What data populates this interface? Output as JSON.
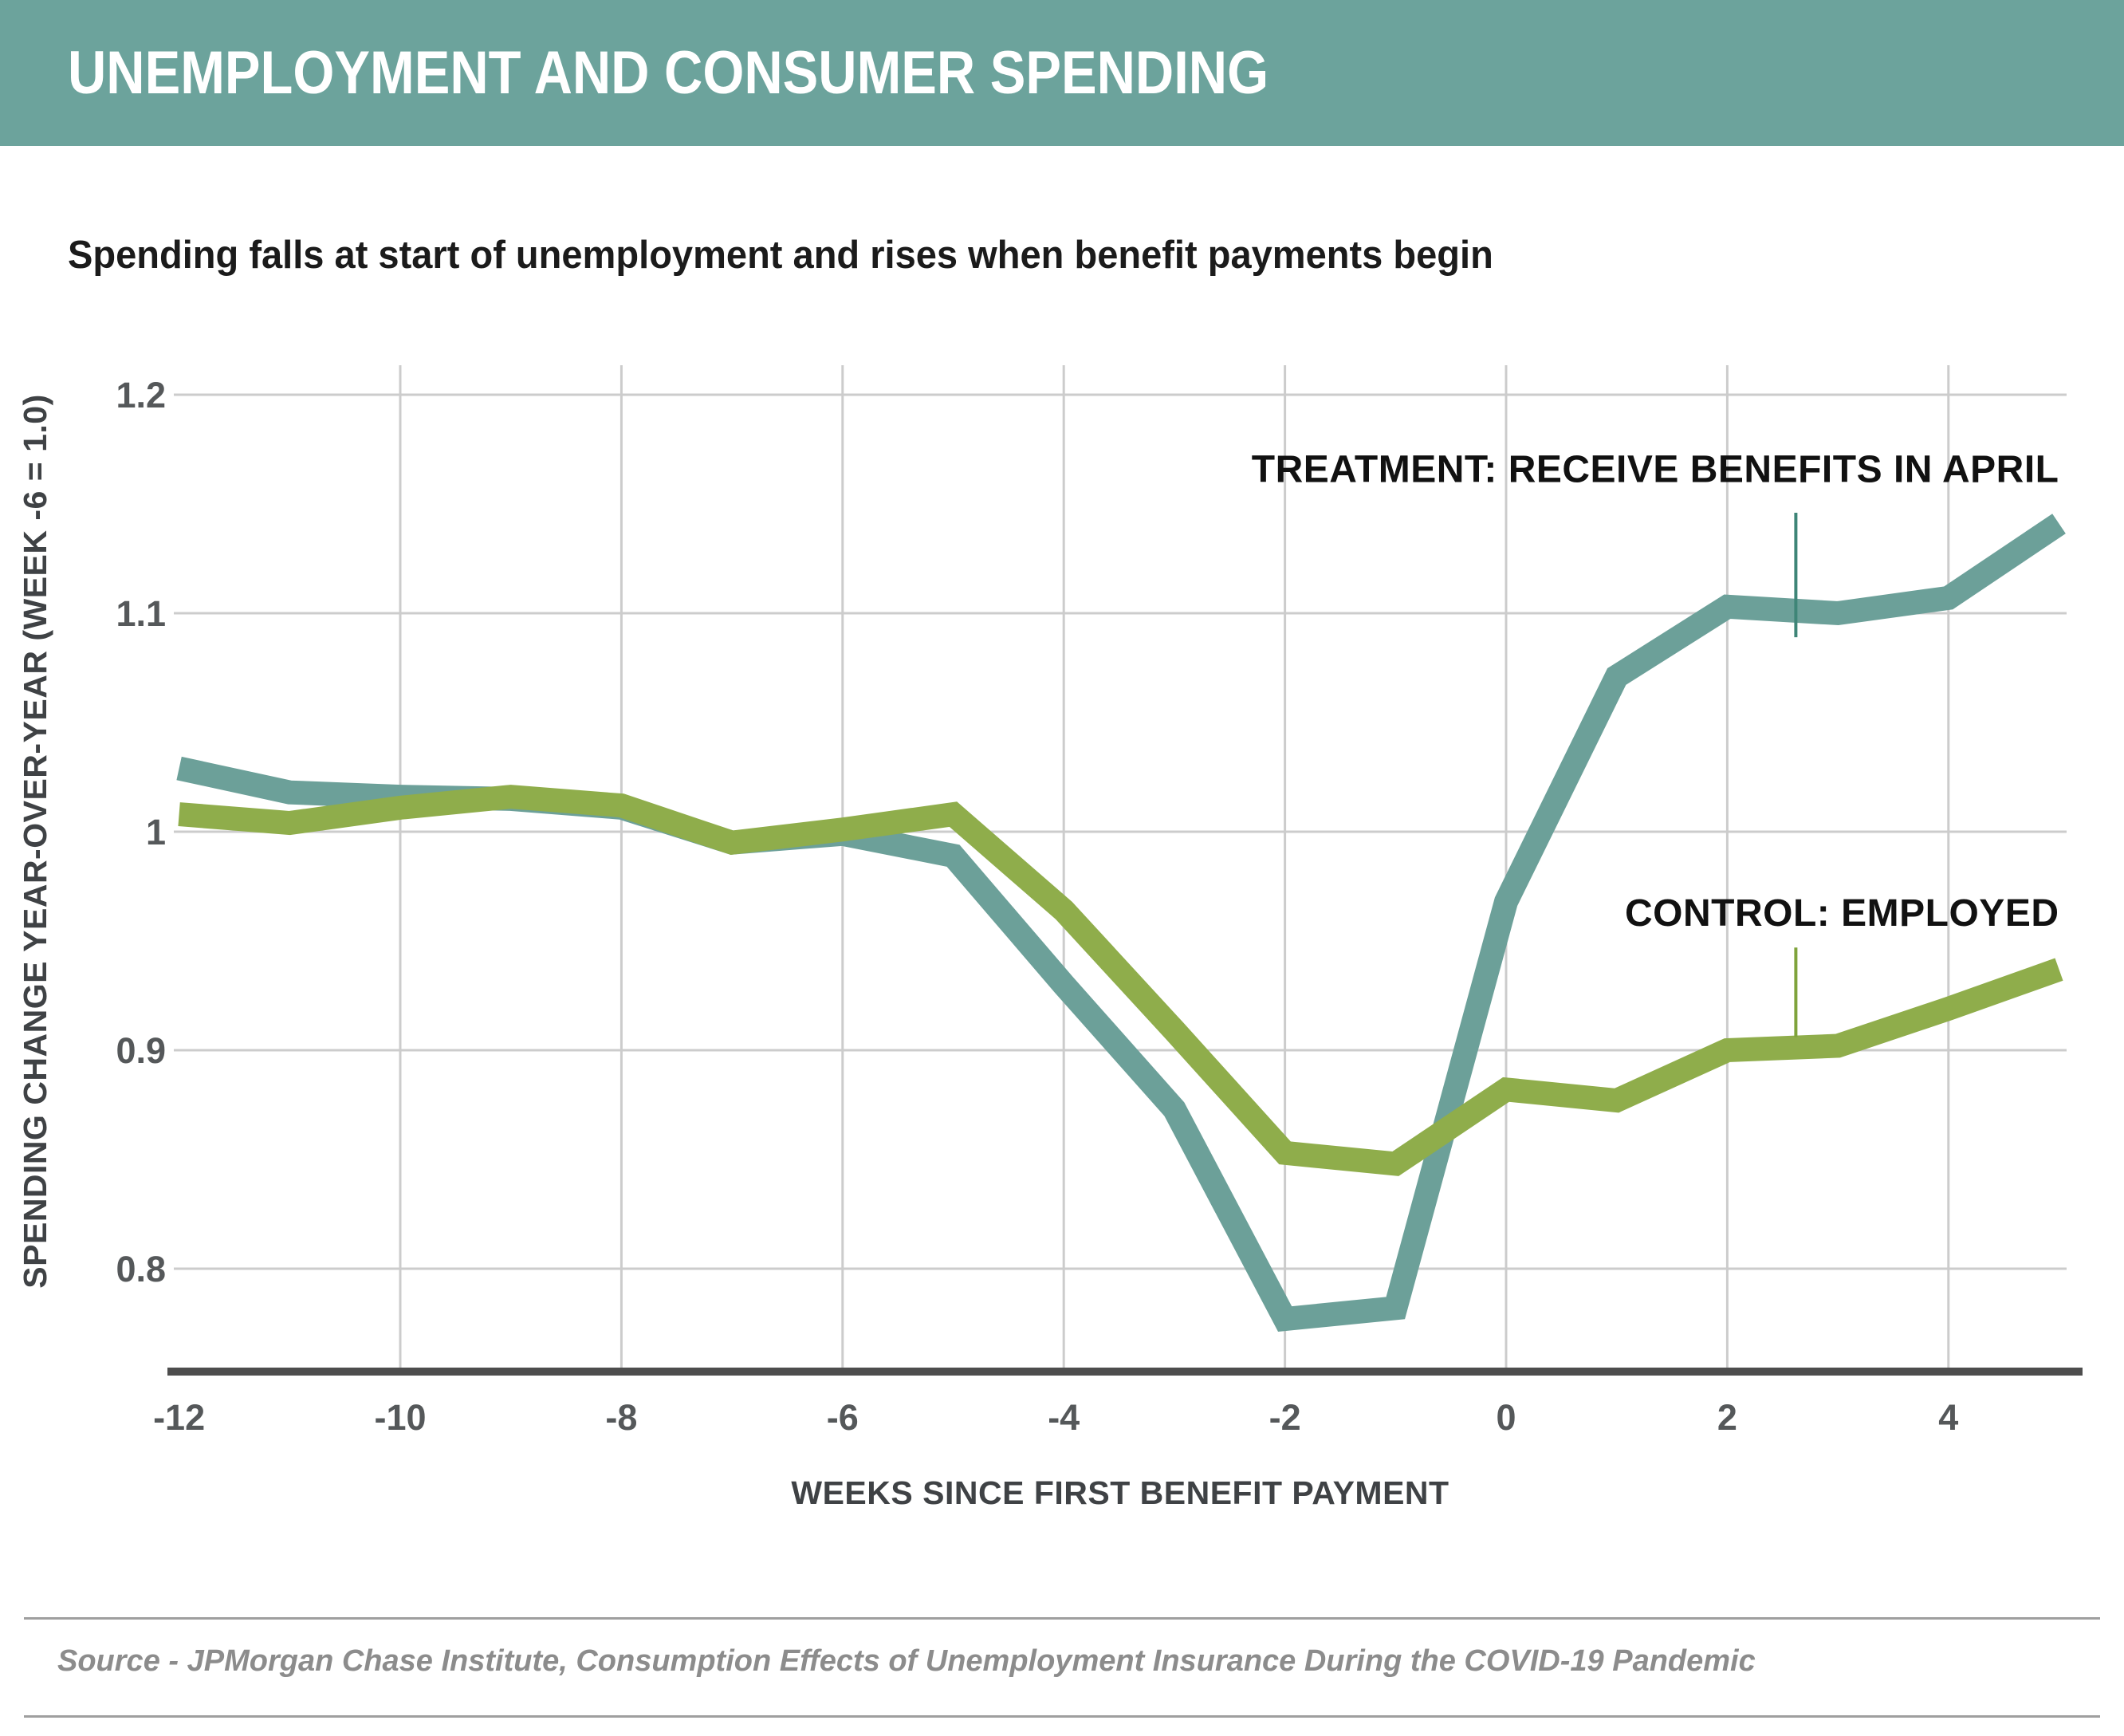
{
  "header": {
    "title": "UNEMPLOYMENT AND CONSUMER SPENDING",
    "bg_color": "#6ca39c"
  },
  "chart_data": {
    "type": "line",
    "title": "Spending falls at start of unemployment and rises when benefit payments begin",
    "xlabel": "WEEKS SINCE FIRST BENEFIT PAYMENT",
    "ylabel": "SPENDING CHANGE YEAR-OVER-YEAR (WEEK -6 = 1.0)",
    "x": [
      -12,
      -11,
      -10,
      -9,
      -8,
      -7,
      -6,
      -5,
      -4,
      -3,
      -2,
      -1,
      0,
      1,
      2,
      3,
      4,
      5
    ],
    "series": [
      {
        "name": "TREATMENT: RECEIVE BENEFITS IN APRIL",
        "color": "#6ca099",
        "values": [
          1.029,
          1.018,
          1.016,
          1.015,
          1.011,
          0.995,
          0.999,
          0.989,
          0.93,
          0.873,
          0.777,
          0.782,
          0.968,
          1.071,
          1.103,
          1.1,
          1.107,
          1.141
        ]
      },
      {
        "name": "CONTROL: EMPLOYED",
        "color": "#8fad4b",
        "values": [
          1.008,
          1.004,
          1.011,
          1.016,
          1.012,
          0.995,
          1.001,
          1.008,
          0.964,
          0.909,
          0.853,
          0.848,
          0.882,
          0.877,
          0.9,
          0.902,
          0.919,
          0.937
        ]
      }
    ],
    "x_ticks": [
      {
        "v": -12,
        "label": "-12"
      },
      {
        "v": -10,
        "label": "-10"
      },
      {
        "v": -8,
        "label": "-8"
      },
      {
        "v": -6,
        "label": "-6"
      },
      {
        "v": -4,
        "label": "-4"
      },
      {
        "v": -2,
        "label": "-2"
      },
      {
        "v": 0,
        "label": "0"
      },
      {
        "v": 2,
        "label": "2"
      },
      {
        "v": 4,
        "label": "4"
      }
    ],
    "y_ticks": [
      {
        "v": 1.2,
        "label": "1.2"
      },
      {
        "v": 1.1,
        "label": "1.1"
      },
      {
        "v": 1.0,
        "label": "1"
      },
      {
        "v": 0.9,
        "label": "0.9"
      },
      {
        "v": 0.8,
        "label": "0.8"
      }
    ],
    "xlim": [
      -12,
      5.15
    ],
    "ylim": [
      0.752,
      1.215
    ],
    "grid": true,
    "legend_position": "direct-labels-on-chart",
    "annotations": [
      {
        "id": "treatment",
        "text": "TREATMENT: RECEIVE BENEFITS IN APRIL",
        "text_value": 1.16,
        "text_end_week": 5.0,
        "leader_week": 2.62,
        "leader_value_top": 1.146,
        "leader_value_bottom": 1.089,
        "leader_color": "#3e8577"
      },
      {
        "id": "control",
        "text": "CONTROL: EMPLOYED",
        "text_value": 0.957,
        "text_end_week": 5.0,
        "leader_week": 2.62,
        "leader_value_top": 0.947,
        "leader_value_bottom": 0.906,
        "leader_color": "#7fa33b"
      }
    ]
  },
  "footer": {
    "source": "Source - JPMorgan Chase Institute, Consumption Effects of Unemployment Insurance During the COVID-19 Pandemic"
  }
}
